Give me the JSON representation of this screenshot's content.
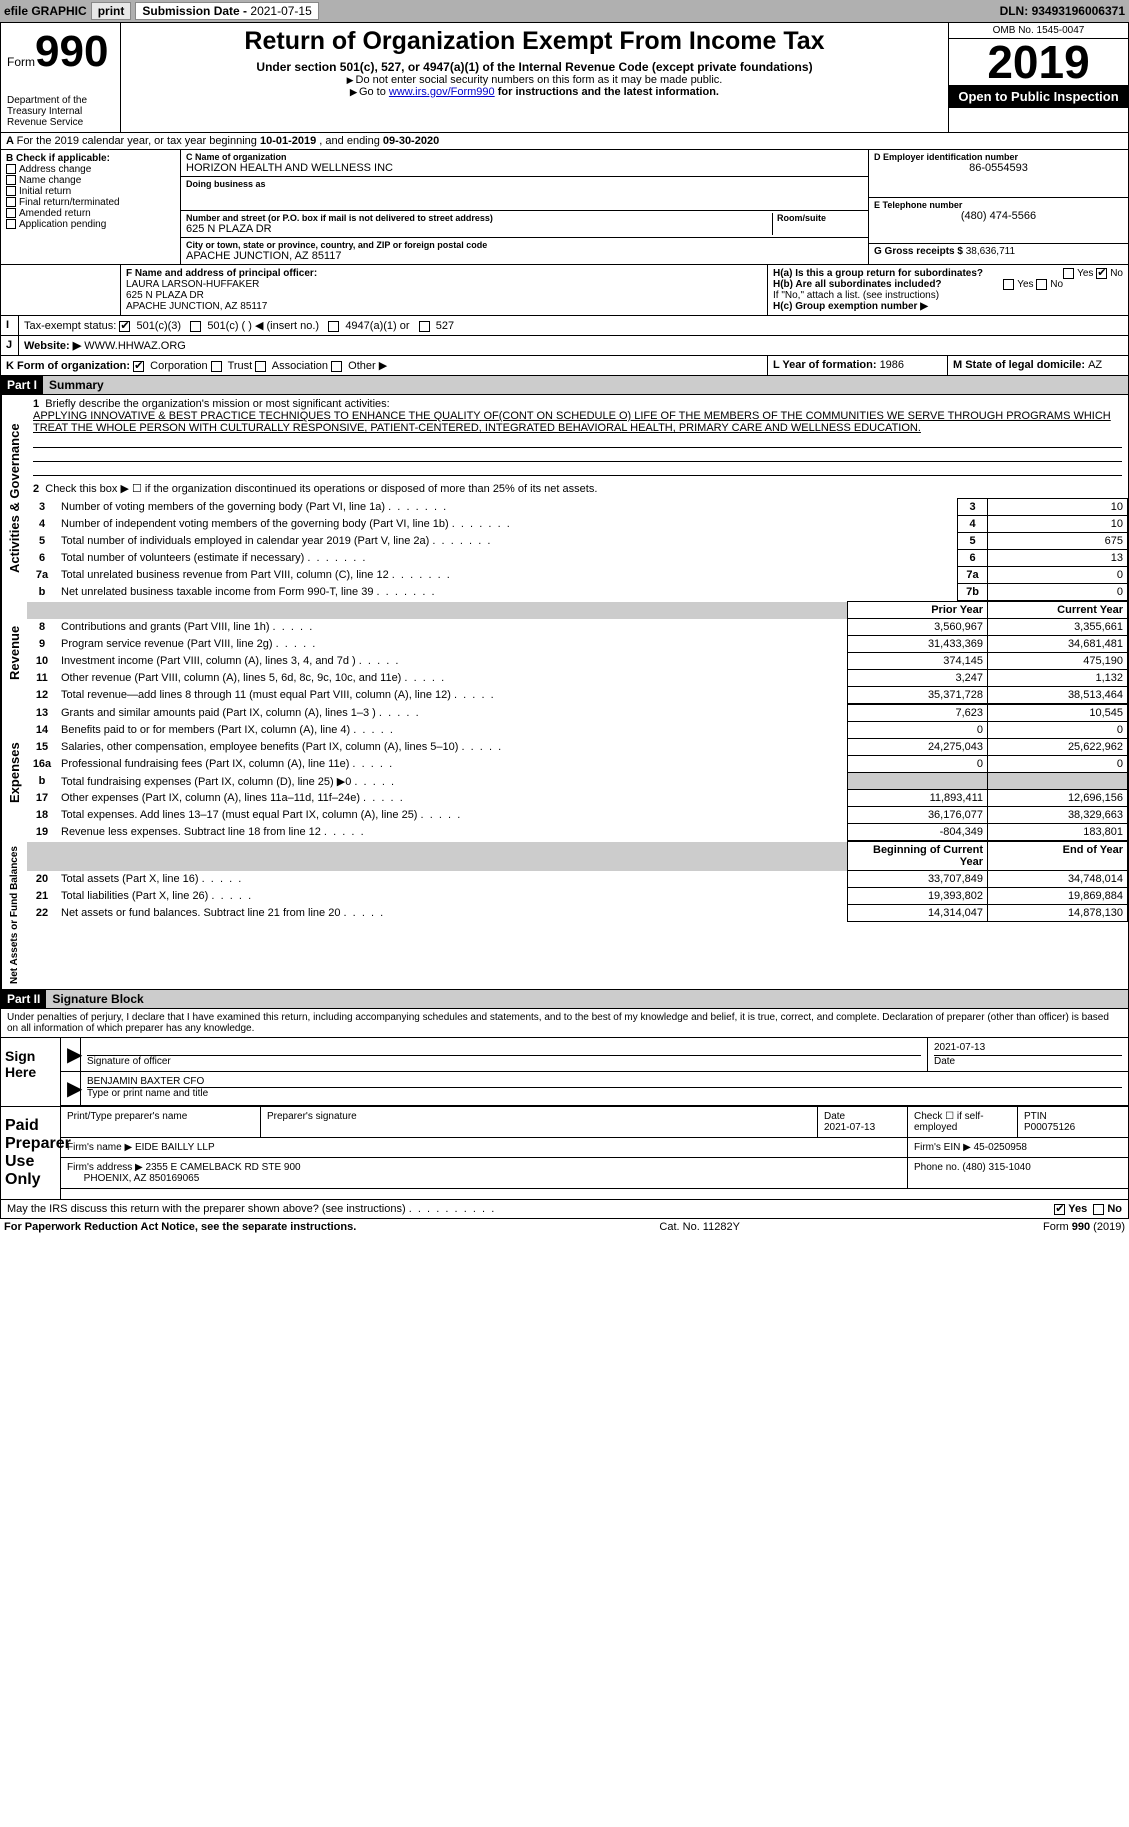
{
  "toolbar": {
    "efile": "efile GRAPHIC",
    "print": "print",
    "subdate_label": "Submission Date - ",
    "subdate_val": "2021-07-15",
    "dln_label": "DLN: ",
    "dln_val": "93493196006371"
  },
  "header": {
    "form_word": "Form",
    "form_num": "990",
    "dept": "Department of the Treasury\nInternal Revenue Service",
    "title": "Return of Organization Exempt From Income Tax",
    "subtitle": "Under section 501(c), 527, or 4947(a)(1) of the Internal Revenue Code (except private foundations)",
    "note1": "Do not enter social security numbers on this form as it may be made public.",
    "note2_pre": "Go to ",
    "note2_link": "www.irs.gov/Form990",
    "note2_post": " for instructions and the latest information.",
    "omb": "OMB No. 1545-0047",
    "year": "2019",
    "inspect": "Open to Public Inspection"
  },
  "lineA": {
    "pre": "For the 2019 calendar year, or tax year beginning ",
    "beg": "10-01-2019",
    "mid": " , and ending ",
    "end": "09-30-2020"
  },
  "boxB": {
    "label": "B Check if applicable:",
    "opts": [
      "Address change",
      "Name change",
      "Initial return",
      "Final return/terminated",
      "Amended return",
      "Application pending"
    ]
  },
  "boxC": {
    "name_label": "C Name of organization",
    "name": "HORIZON HEALTH AND WELLNESS INC",
    "dba_label": "Doing business as",
    "dba": "",
    "street_label": "Number and street (or P.O. box if mail is not delivered to street address)",
    "room_label": "Room/suite",
    "street": "625 N PLAZA DR",
    "city_label": "City or town, state or province, country, and ZIP or foreign postal code",
    "city": "APACHE JUNCTION, AZ  85117"
  },
  "boxD": {
    "label": "D Employer identification number",
    "val": "86-0554593"
  },
  "boxE": {
    "label": "E Telephone number",
    "val": "(480) 474-5566"
  },
  "boxG": {
    "label": "G Gross receipts $ ",
    "val": "38,636,711"
  },
  "boxF": {
    "label": "F Name and address of principal officer:",
    "name": "LAURA LARSON-HUFFAKER",
    "addr1": "625 N PLAZA DR",
    "addr2": "APACHE JUNCTION, AZ  85117"
  },
  "boxH": {
    "a_label": "H(a)  Is this a group return for subordinates?",
    "b_label": "H(b)  Are all subordinates included?",
    "b_note": "If \"No,\" attach a list. (see instructions)",
    "c_label": "H(c)  Group exemption number ▶",
    "yes": "Yes",
    "no": "No"
  },
  "boxI": {
    "label": "Tax-exempt status:",
    "opts": [
      "501(c)(3)",
      "501(c) (  ) ◀ (insert no.)",
      "4947(a)(1) or",
      "527"
    ]
  },
  "boxJ": {
    "label": "Website: ▶",
    "val": "WWW.HHWAZ.ORG"
  },
  "boxK": {
    "label": "K Form of organization:",
    "opts": [
      "Corporation",
      "Trust",
      "Association",
      "Other ▶"
    ]
  },
  "boxL": {
    "label": "L Year of formation: ",
    "val": "1986"
  },
  "boxM": {
    "label": "M State of legal domicile: ",
    "val": "AZ"
  },
  "partI": {
    "part": "Part I",
    "title": "Summary",
    "mission_label": "Briefly describe the organization's mission or most significant activities:",
    "mission": "APPLYING INNOVATIVE & BEST PRACTICE TECHNIQUES TO ENHANCE THE QUALITY OF(CONT ON SCHEDULE O) LIFE OF THE MEMBERS OF THE COMMUNITIES WE SERVE THROUGH PROGRAMS WHICH TREAT THE WHOLE PERSON WITH CULTURALLY RESPONSIVE, PATIENT-CENTERED, INTEGRATED BEHAVIORAL HEALTH, PRIMARY CARE AND WELLNESS EDUCATION.",
    "line2": "Check this box ▶ ☐  if the organization discontinued its operations or disposed of more than 25% of its net assets.",
    "govern_label": "Activities & Governance",
    "rev_label": "Revenue",
    "exp_label": "Expenses",
    "na_label": "Net Assets or Fund Balances",
    "lines_gov": [
      {
        "n": "3",
        "d": "Number of voting members of the governing body (Part VI, line 1a)",
        "box": "3",
        "v": "10"
      },
      {
        "n": "4",
        "d": "Number of independent voting members of the governing body (Part VI, line 1b)",
        "box": "4",
        "v": "10"
      },
      {
        "n": "5",
        "d": "Total number of individuals employed in calendar year 2019 (Part V, line 2a)",
        "box": "5",
        "v": "675"
      },
      {
        "n": "6",
        "d": "Total number of volunteers (estimate if necessary)",
        "box": "6",
        "v": "13"
      },
      {
        "n": "7a",
        "d": "Total unrelated business revenue from Part VIII, column (C), line 12",
        "box": "7a",
        "v": "0"
      },
      {
        "n": "b",
        "d": "Net unrelated business taxable income from Form 990-T, line 39",
        "box": "7b",
        "v": "0"
      }
    ],
    "prior": "Prior Year",
    "current": "Current Year",
    "lines_rev": [
      {
        "n": "8",
        "d": "Contributions and grants (Part VIII, line 1h)",
        "p": "3,560,967",
        "c": "3,355,661"
      },
      {
        "n": "9",
        "d": "Program service revenue (Part VIII, line 2g)",
        "p": "31,433,369",
        "c": "34,681,481"
      },
      {
        "n": "10",
        "d": "Investment income (Part VIII, column (A), lines 3, 4, and 7d )",
        "p": "374,145",
        "c": "475,190"
      },
      {
        "n": "11",
        "d": "Other revenue (Part VIII, column (A), lines 5, 6d, 8c, 9c, 10c, and 11e)",
        "p": "3,247",
        "c": "1,132"
      },
      {
        "n": "12",
        "d": "Total revenue—add lines 8 through 11 (must equal Part VIII, column (A), line 12)",
        "p": "35,371,728",
        "c": "38,513,464"
      }
    ],
    "lines_exp": [
      {
        "n": "13",
        "d": "Grants and similar amounts paid (Part IX, column (A), lines 1–3 )",
        "p": "7,623",
        "c": "10,545"
      },
      {
        "n": "14",
        "d": "Benefits paid to or for members (Part IX, column (A), line 4)",
        "p": "0",
        "c": "0"
      },
      {
        "n": "15",
        "d": "Salaries, other compensation, employee benefits (Part IX, column (A), lines 5–10)",
        "p": "24,275,043",
        "c": "25,622,962"
      },
      {
        "n": "16a",
        "d": "Professional fundraising fees (Part IX, column (A), line 11e)",
        "p": "0",
        "c": "0"
      },
      {
        "n": "b",
        "d": "Total fundraising expenses (Part IX, column (D), line 25) ▶0",
        "p": "",
        "c": "",
        "shade": true
      },
      {
        "n": "17",
        "d": "Other expenses (Part IX, column (A), lines 11a–11d, 11f–24e)",
        "p": "11,893,411",
        "c": "12,696,156"
      },
      {
        "n": "18",
        "d": "Total expenses. Add lines 13–17 (must equal Part IX, column (A), line 25)",
        "p": "36,176,077",
        "c": "38,329,663"
      },
      {
        "n": "19",
        "d": "Revenue less expenses. Subtract line 18 from line 12",
        "p": "-804,349",
        "c": "183,801"
      }
    ],
    "boY": "Beginning of Current Year",
    "eoY": "End of Year",
    "lines_na": [
      {
        "n": "20",
        "d": "Total assets (Part X, line 16)",
        "p": "33,707,849",
        "c": "34,748,014"
      },
      {
        "n": "21",
        "d": "Total liabilities (Part X, line 26)",
        "p": "19,393,802",
        "c": "19,869,884"
      },
      {
        "n": "22",
        "d": "Net assets or fund balances. Subtract line 21 from line 20",
        "p": "14,314,047",
        "c": "14,878,130"
      }
    ]
  },
  "partII": {
    "part": "Part II",
    "title": "Signature Block",
    "decl": "Under penalties of perjury, I declare that I have examined this return, including accompanying schedules and statements, and to the best of my knowledge and belief, it is true, correct, and complete. Declaration of preparer (other than officer) is based on all information of which preparer has any knowledge.",
    "sign_here": "Sign Here",
    "sig_officer": "Signature of officer",
    "sig_date_label": "Date",
    "sig_date": "2021-07-13",
    "officer_name": "BENJAMIN BAXTER CFO",
    "type_name": "Type or print name and title",
    "paid": "Paid Preparer Use Only",
    "prep_name_label": "Print/Type preparer's name",
    "prep_sig_label": "Preparer's signature",
    "date_label": "Date",
    "date_val": "2021-07-13",
    "check_label": "Check ☐ if self-employed",
    "ptin_label": "PTIN",
    "ptin_val": "P00075126",
    "firm_name_label": "Firm's name     ▶",
    "firm_name": "EIDE BAILLY LLP",
    "firm_ein_label": "Firm's EIN ▶",
    "firm_ein": "45-0250958",
    "firm_addr_label": "Firm's address ▶",
    "firm_addr1": "2355 E CAMELBACK RD STE 900",
    "firm_addr2": "PHOENIX, AZ  850169065",
    "phone_label": "Phone no. ",
    "phone": "(480) 315-1040",
    "discuss": "May the IRS discuss this return with the preparer shown above? (see instructions)",
    "yes": "Yes",
    "no": "No"
  },
  "footer": {
    "left": "For Paperwork Reduction Act Notice, see the separate instructions.",
    "mid": "Cat. No. 11282Y",
    "right": "Form 990 (2019)"
  }
}
